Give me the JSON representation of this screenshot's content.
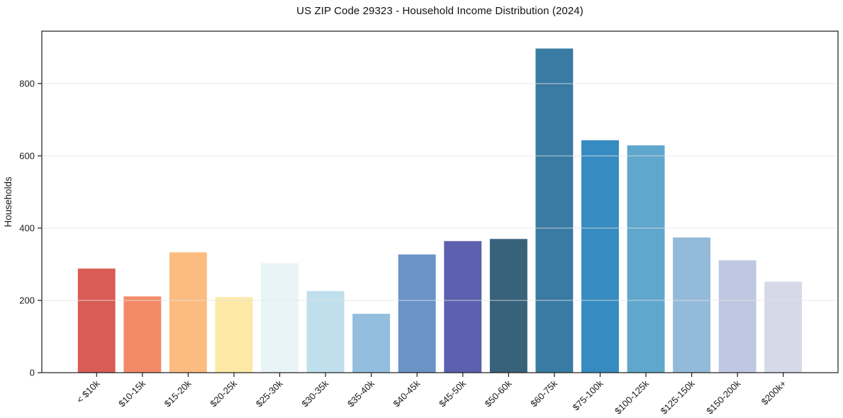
{
  "chart_data": {
    "type": "bar",
    "title": "US ZIP Code 29323 - Household Income Distribution (2024)",
    "xlabel": "",
    "ylabel": "Households",
    "categories": [
      "< $10k",
      "$10-15k",
      "$15-20k",
      "$20-25k",
      "$25-30k",
      "$30-35k",
      "$35-40k",
      "$40-45k",
      "$45-50k",
      "$50-60k",
      "$60-75k",
      "$75-100k",
      "$100-125k",
      "$125-150k",
      "$150-200k",
      "$200k+"
    ],
    "values": [
      288,
      211,
      333,
      209,
      303,
      226,
      163,
      327,
      364,
      370,
      897,
      643,
      629,
      374,
      311,
      252
    ],
    "bar_colors": [
      "#d95d55",
      "#f28a67",
      "#fcbc80",
      "#fde8a6",
      "#e8f4f6",
      "#c0dfec",
      "#93bedd",
      "#6a93c6",
      "#5c60ae",
      "#38617a",
      "#3a7ba3",
      "#368cc1",
      "#5fa7cd",
      "#94bad9",
      "#bec9e1",
      "#d6d9e7"
    ],
    "yticks": [
      0,
      200,
      400,
      600,
      800
    ],
    "ylim": [
      0,
      945
    ],
    "grid": "horizontal",
    "legend_position": "none",
    "style": {
      "grid_color": "#e4e4e4",
      "axis_color": "#1a1a1a",
      "tick_label_color": "#1a1a1a",
      "background": "#ffffff"
    }
  }
}
